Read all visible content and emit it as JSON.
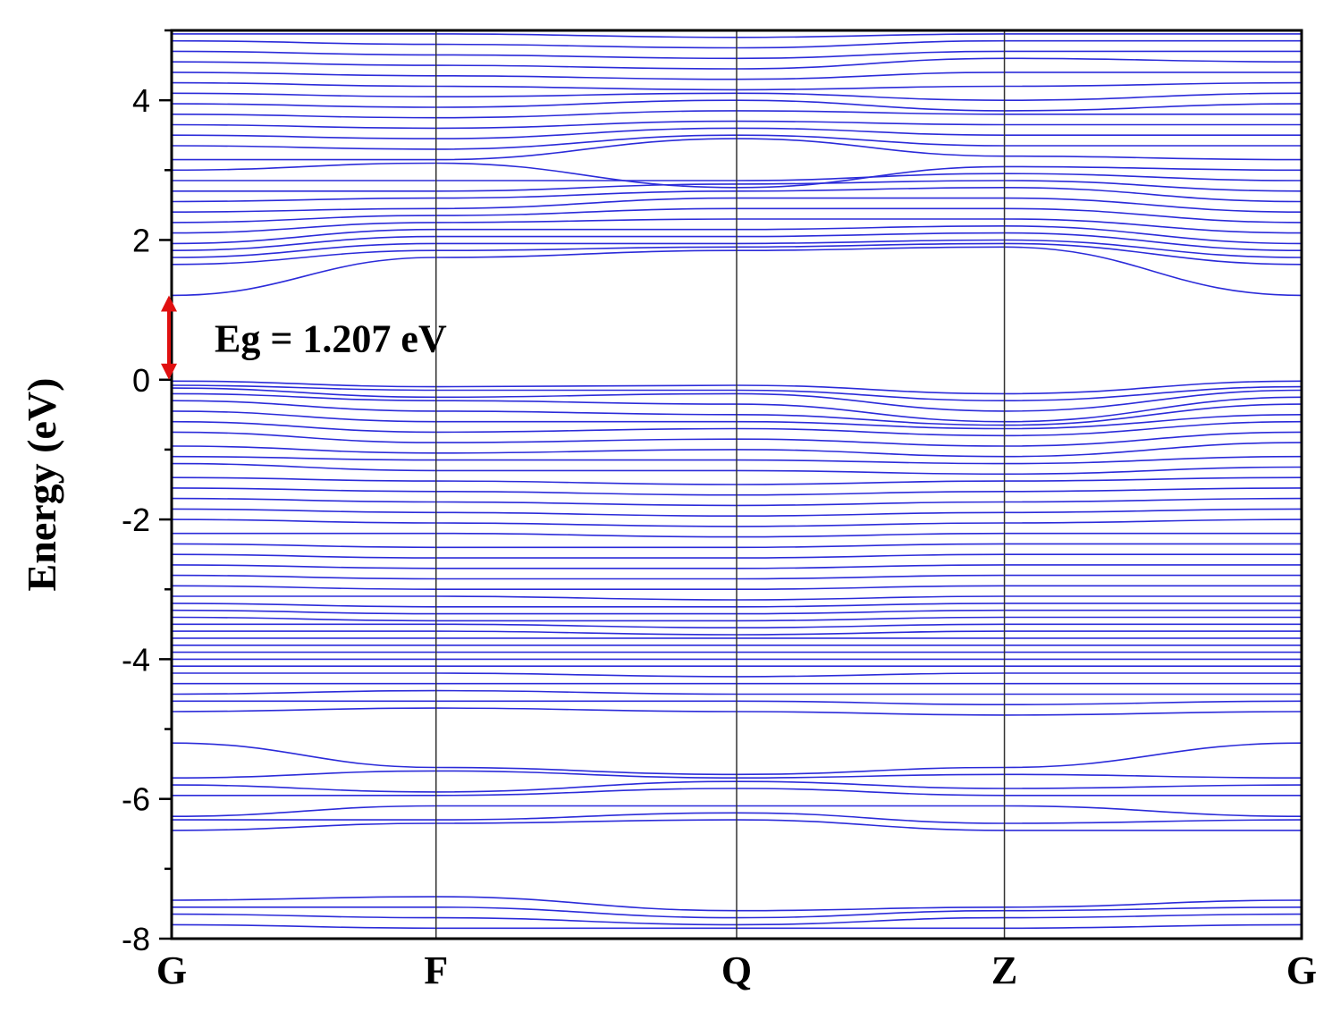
{
  "chart_data": {
    "type": "line",
    "title": "",
    "ylabel": "Energy (eV)",
    "xlabel": "",
    "ylim": [
      -8,
      5
    ],
    "y_ticks": [
      -8,
      -6,
      -4,
      -2,
      0,
      2,
      4
    ],
    "y_tick_labels": [
      "-8",
      "-6",
      "-4",
      "-2",
      "0",
      "2",
      "4"
    ],
    "y_minor_tick_step": 1,
    "k_path_labels": [
      "G",
      "F",
      "Q",
      "Z",
      "G"
    ],
    "k_path_positions": [
      0,
      0.234,
      0.5,
      0.737,
      1
    ],
    "high_symmetry_vertical_lines": true,
    "line_color": "#2b2bd9",
    "annotation": {
      "text": "Eg = 1.207 eV",
      "arrow_from": 0,
      "arrow_to": 1.207,
      "arrow_color": "#e01010"
    },
    "series": [
      {
        "group": "deep-valence",
        "values": [
          -7.45,
          -7.4,
          -7.6,
          -7.55,
          -7.45
        ]
      },
      {
        "group": "deep-valence",
        "values": [
          -7.55,
          -7.55,
          -7.7,
          -7.6,
          -7.55
        ]
      },
      {
        "group": "deep-valence",
        "values": [
          -7.65,
          -7.7,
          -7.8,
          -7.7,
          -7.65
        ]
      },
      {
        "group": "deep-valence",
        "values": [
          -7.8,
          -7.85,
          -7.85,
          -7.85,
          -7.8
        ]
      },
      {
        "group": "lower-valence",
        "values": [
          -5.2,
          -5.55,
          -5.65,
          -5.55,
          -5.2
        ]
      },
      {
        "group": "lower-valence",
        "values": [
          -5.7,
          -5.6,
          -5.7,
          -5.65,
          -5.7
        ]
      },
      {
        "group": "lower-valence",
        "values": [
          -5.8,
          -5.9,
          -5.75,
          -5.85,
          -5.8
        ]
      },
      {
        "group": "lower-valence",
        "values": [
          -5.95,
          -5.95,
          -5.85,
          -5.95,
          -5.95
        ]
      },
      {
        "group": "lower-valence",
        "values": [
          -6.25,
          -6.1,
          -6.1,
          -6.1,
          -6.25
        ]
      },
      {
        "group": "lower-valence",
        "values": [
          -6.3,
          -6.3,
          -6.2,
          -6.35,
          -6.3
        ]
      },
      {
        "group": "lower-valence",
        "values": [
          -6.45,
          -6.35,
          -6.3,
          -6.45,
          -6.45
        ]
      },
      {
        "group": "valence",
        "values": [
          -0.02,
          -0.1,
          -0.08,
          -0.2,
          -0.02
        ]
      },
      {
        "group": "valence",
        "values": [
          -0.08,
          -0.15,
          -0.15,
          -0.3,
          -0.1
        ]
      },
      {
        "group": "valence",
        "values": [
          -0.12,
          -0.25,
          -0.2,
          -0.45,
          -0.15
        ]
      },
      {
        "group": "valence",
        "values": [
          -0.2,
          -0.3,
          -0.35,
          -0.6,
          -0.25
        ]
      },
      {
        "group": "valence",
        "values": [
          -0.3,
          -0.45,
          -0.5,
          -0.65,
          -0.35
        ]
      },
      {
        "group": "valence",
        "values": [
          -0.45,
          -0.6,
          -0.6,
          -0.7,
          -0.5
        ]
      },
      {
        "group": "valence",
        "values": [
          -0.6,
          -0.75,
          -0.7,
          -0.8,
          -0.6
        ]
      },
      {
        "group": "valence",
        "values": [
          -0.75,
          -0.9,
          -0.85,
          -0.95,
          -0.75
        ]
      },
      {
        "group": "valence",
        "values": [
          -0.95,
          -1.05,
          -1.0,
          -1.1,
          -0.9
        ]
      },
      {
        "group": "valence",
        "values": [
          -1.1,
          -1.15,
          -1.15,
          -1.2,
          -1.1
        ]
      },
      {
        "group": "valence",
        "values": [
          -1.2,
          -1.3,
          -1.3,
          -1.35,
          -1.25
        ]
      },
      {
        "group": "valence",
        "values": [
          -1.4,
          -1.45,
          -1.5,
          -1.45,
          -1.4
        ]
      },
      {
        "group": "valence",
        "values": [
          -1.55,
          -1.6,
          -1.65,
          -1.6,
          -1.55
        ]
      },
      {
        "group": "valence",
        "values": [
          -1.7,
          -1.75,
          -1.8,
          -1.75,
          -1.7
        ]
      },
      {
        "group": "valence",
        "values": [
          -1.85,
          -1.9,
          -1.95,
          -1.9,
          -1.85
        ]
      },
      {
        "group": "valence",
        "values": [
          -2.0,
          -2.05,
          -2.1,
          -2.05,
          -2.0
        ]
      },
      {
        "group": "valence",
        "values": [
          -2.2,
          -2.2,
          -2.25,
          -2.2,
          -2.2
        ]
      },
      {
        "group": "valence",
        "values": [
          -2.35,
          -2.4,
          -2.4,
          -2.35,
          -2.35
        ]
      },
      {
        "group": "valence",
        "values": [
          -2.5,
          -2.55,
          -2.55,
          -2.5,
          -2.5
        ]
      },
      {
        "group": "valence",
        "values": [
          -2.65,
          -2.7,
          -2.7,
          -2.65,
          -2.65
        ]
      },
      {
        "group": "valence",
        "values": [
          -2.8,
          -2.85,
          -2.85,
          -2.8,
          -2.8
        ]
      },
      {
        "group": "valence",
        "values": [
          -2.95,
          -3.0,
          -3.0,
          -2.95,
          -2.95
        ]
      },
      {
        "group": "valence",
        "values": [
          -3.1,
          -3.1,
          -3.15,
          -3.1,
          -3.1
        ]
      },
      {
        "group": "valence",
        "values": [
          -3.2,
          -3.25,
          -3.25,
          -3.2,
          -3.2
        ]
      },
      {
        "group": "valence",
        "values": [
          -3.3,
          -3.35,
          -3.35,
          -3.3,
          -3.3
        ]
      },
      {
        "group": "valence",
        "values": [
          -3.4,
          -3.45,
          -3.45,
          -3.4,
          -3.4
        ]
      },
      {
        "group": "valence",
        "values": [
          -3.5,
          -3.5,
          -3.55,
          -3.5,
          -3.5
        ]
      },
      {
        "group": "valence",
        "values": [
          -3.6,
          -3.6,
          -3.65,
          -3.6,
          -3.6
        ]
      },
      {
        "group": "valence",
        "values": [
          -3.7,
          -3.7,
          -3.7,
          -3.7,
          -3.7
        ]
      },
      {
        "group": "valence",
        "values": [
          -3.8,
          -3.8,
          -3.8,
          -3.8,
          -3.8
        ]
      },
      {
        "group": "valence",
        "values": [
          -3.9,
          -3.9,
          -3.9,
          -3.9,
          -3.9
        ]
      },
      {
        "group": "valence",
        "values": [
          -4.0,
          -4.0,
          -4.0,
          -4.0,
          -4.0
        ]
      },
      {
        "group": "valence",
        "values": [
          -4.1,
          -4.1,
          -4.1,
          -4.1,
          -4.1
        ]
      },
      {
        "group": "valence",
        "values": [
          -4.2,
          -4.2,
          -4.25,
          -4.2,
          -4.2
        ]
      },
      {
        "group": "valence",
        "values": [
          -4.35,
          -4.35,
          -4.35,
          -4.35,
          -4.35
        ]
      },
      {
        "group": "valence",
        "values": [
          -4.5,
          -4.45,
          -4.5,
          -4.5,
          -4.5
        ]
      },
      {
        "group": "valence",
        "values": [
          -4.6,
          -4.6,
          -4.6,
          -4.65,
          -4.6
        ]
      },
      {
        "group": "valence",
        "values": [
          -4.75,
          -4.7,
          -4.75,
          -4.8,
          -4.75
        ]
      },
      {
        "group": "conduction",
        "values": [
          1.207,
          1.75,
          1.85,
          1.9,
          1.207
        ]
      },
      {
        "group": "conduction",
        "values": [
          1.65,
          1.85,
          1.9,
          1.95,
          1.65
        ]
      },
      {
        "group": "conduction",
        "values": [
          1.75,
          1.95,
          1.95,
          2.0,
          1.75
        ]
      },
      {
        "group": "conduction",
        "values": [
          1.85,
          2.05,
          2.05,
          2.1,
          1.85
        ]
      },
      {
        "group": "conduction",
        "values": [
          1.95,
          2.15,
          2.15,
          2.2,
          1.95
        ]
      },
      {
        "group": "conduction",
        "values": [
          2.1,
          2.25,
          2.3,
          2.3,
          2.1
        ]
      },
      {
        "group": "conduction",
        "values": [
          2.25,
          2.35,
          2.45,
          2.45,
          2.25
        ]
      },
      {
        "group": "conduction",
        "values": [
          2.4,
          2.45,
          2.6,
          2.6,
          2.4
        ]
      },
      {
        "group": "conduction",
        "values": [
          2.55,
          2.6,
          2.7,
          2.75,
          2.55
        ]
      },
      {
        "group": "conduction",
        "values": [
          2.7,
          2.7,
          2.8,
          2.85,
          2.7
        ]
      },
      {
        "group": "conduction",
        "values": [
          2.85,
          2.85,
          2.85,
          2.95,
          2.85
        ]
      },
      {
        "group": "conduction",
        "values": [
          3.0,
          3.1,
          2.75,
          3.05,
          3.0
        ]
      },
      {
        "group": "conduction",
        "values": [
          3.15,
          3.15,
          3.45,
          3.2,
          3.15
        ]
      },
      {
        "group": "conduction",
        "values": [
          3.35,
          3.3,
          3.5,
          3.35,
          3.35
        ]
      },
      {
        "group": "conduction",
        "values": [
          3.5,
          3.45,
          3.6,
          3.5,
          3.5
        ]
      },
      {
        "group": "conduction",
        "values": [
          3.65,
          3.6,
          3.7,
          3.65,
          3.65
        ]
      },
      {
        "group": "conduction",
        "values": [
          3.8,
          3.75,
          3.85,
          3.8,
          3.8
        ]
      },
      {
        "group": "conduction",
        "values": [
          3.95,
          3.9,
          4.0,
          3.85,
          3.95
        ]
      },
      {
        "group": "conduction",
        "values": [
          4.1,
          4.05,
          4.1,
          4.0,
          4.1
        ]
      },
      {
        "group": "conduction",
        "values": [
          4.25,
          4.2,
          4.15,
          4.2,
          4.25
        ]
      },
      {
        "group": "conduction",
        "values": [
          4.4,
          4.35,
          4.3,
          4.4,
          4.4
        ]
      },
      {
        "group": "conduction",
        "values": [
          4.55,
          4.5,
          4.45,
          4.6,
          4.55
        ]
      },
      {
        "group": "conduction",
        "values": [
          4.7,
          4.65,
          4.6,
          4.7,
          4.7
        ]
      },
      {
        "group": "conduction",
        "values": [
          4.85,
          4.8,
          4.75,
          4.85,
          4.85
        ]
      },
      {
        "group": "conduction",
        "values": [
          4.95,
          4.95,
          4.9,
          4.95,
          4.95
        ]
      }
    ]
  }
}
